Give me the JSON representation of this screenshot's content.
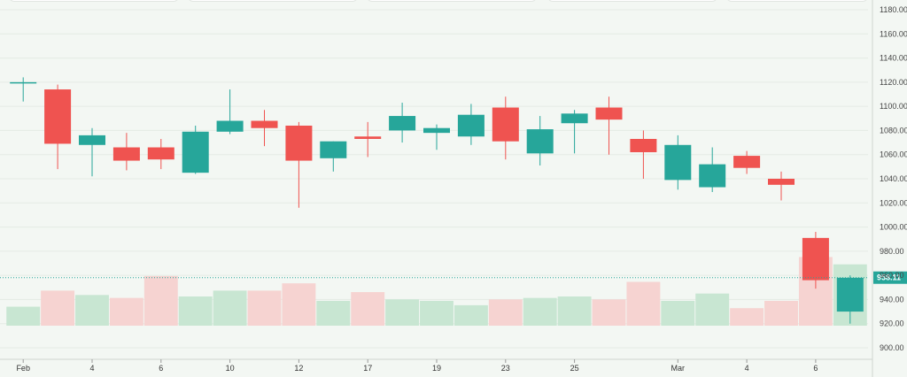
{
  "chart_data": {
    "type": "candlestick",
    "title": "",
    "xlabel": "",
    "ylabel": "",
    "ylim": [
      900,
      1180
    ],
    "y_ticks": [
      "1180.00",
      "1160.00",
      "1140.00",
      "1120.00",
      "1100.00",
      "1080.00",
      "1060.00",
      "1040.00",
      "1020.00",
      "1000.00",
      "980.00",
      "960.00",
      "940.00",
      "920.00",
      "900.00"
    ],
    "x_tick_labels": [
      "Feb",
      "4",
      "6",
      "10",
      "12",
      "17",
      "19",
      "23",
      "25",
      "Mar",
      "4",
      "6"
    ],
    "last_price_label": "958.11",
    "last_price": 958.11,
    "colors": {
      "up": "#26a69a",
      "down": "#ef5350",
      "vol_up": "#c8e6d2",
      "vol_down": "#f6d3d1"
    },
    "candles": [
      {
        "o": 1119,
        "h": 1124,
        "l": 1104,
        "c": 1120,
        "v": 0.13
      },
      {
        "o": 1114,
        "h": 1118,
        "l": 1048,
        "c": 1069,
        "v": 0.24
      },
      {
        "o": 1068,
        "h": 1082,
        "l": 1042,
        "c": 1076,
        "v": 0.21
      },
      {
        "o": 1066,
        "h": 1078,
        "l": 1047,
        "c": 1055,
        "v": 0.19
      },
      {
        "o": 1066,
        "h": 1073,
        "l": 1048,
        "c": 1056,
        "v": 0.34
      },
      {
        "o": 1045,
        "h": 1084,
        "l": 1044,
        "c": 1079,
        "v": 0.2
      },
      {
        "o": 1079,
        "h": 1114,
        "l": 1077,
        "c": 1088,
        "v": 0.24
      },
      {
        "o": 1088,
        "h": 1097,
        "l": 1067,
        "c": 1082,
        "v": 0.24
      },
      {
        "o": 1084,
        "h": 1087,
        "l": 1016,
        "c": 1055,
        "v": 0.29
      },
      {
        "o": 1057,
        "h": 1071,
        "l": 1046,
        "c": 1071,
        "v": 0.17
      },
      {
        "o": 1075,
        "h": 1087,
        "l": 1058,
        "c": 1073,
        "v": 0.23
      },
      {
        "o": 1080,
        "h": 1103,
        "l": 1070,
        "c": 1092,
        "v": 0.18
      },
      {
        "o": 1078,
        "h": 1085,
        "l": 1064,
        "c": 1082,
        "v": 0.17
      },
      {
        "o": 1075,
        "h": 1102,
        "l": 1068,
        "c": 1093,
        "v": 0.14
      },
      {
        "o": 1099,
        "h": 1108,
        "l": 1056,
        "c": 1071,
        "v": 0.18
      },
      {
        "o": 1061,
        "h": 1092,
        "l": 1051,
        "c": 1081,
        "v": 0.19
      },
      {
        "o": 1086,
        "h": 1097,
        "l": 1061,
        "c": 1094,
        "v": 0.2
      },
      {
        "o": 1099,
        "h": 1108,
        "l": 1060,
        "c": 1089,
        "v": 0.18
      },
      {
        "o": 1073,
        "h": 1080,
        "l": 1040,
        "c": 1062,
        "v": 0.3
      },
      {
        "o": 1039,
        "h": 1076,
        "l": 1031,
        "c": 1068,
        "v": 0.17
      },
      {
        "o": 1033,
        "h": 1066,
        "l": 1029,
        "c": 1052,
        "v": 0.22
      },
      {
        "o": 1059,
        "h": 1063,
        "l": 1044,
        "c": 1049,
        "v": 0.12
      },
      {
        "o": 1040,
        "h": 1046,
        "l": 1022,
        "c": 1035,
        "v": 0.17
      },
      {
        "o": 991,
        "h": 996,
        "l": 949,
        "c": 956,
        "v": 0.47
      },
      {
        "o": 930,
        "h": 960,
        "l": 920,
        "c": 958,
        "v": 0.42
      }
    ]
  }
}
